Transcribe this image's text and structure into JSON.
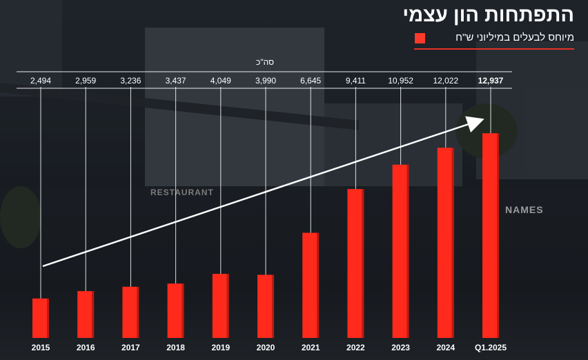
{
  "header": {
    "title": "התפתחות הון עצמי",
    "subtitle": "מיוחס לבעלים במיליוני ש\"ח",
    "legend_color": "#ff3a2a"
  },
  "background": {
    "sign_restaurant": "RESTAURANT",
    "sign_names": "NAMES"
  },
  "chart_data": {
    "type": "bar",
    "title": "התפתחות הון עצמי",
    "subtitle": "מיוחס לבעלים במיליוני ש\"ח",
    "total_row_label": "סה\"כ",
    "categories": [
      "2015",
      "2016",
      "2017",
      "2018",
      "2019",
      "2020",
      "2021",
      "2022",
      "2023",
      "2024",
      "Q1.2025"
    ],
    "values": [
      2494,
      2959,
      3236,
      3437,
      4049,
      3990,
      6645,
      9411,
      10952,
      12022,
      12937
    ],
    "value_labels": [
      "2,494",
      "2,959",
      "3,236",
      "3,437",
      "4,049",
      "3,990",
      "6,645",
      "9,411",
      "10,952",
      "12,022",
      "12,937"
    ],
    "ylim": [
      0,
      13600
    ],
    "grid": false,
    "trend_arrow": true,
    "bar_color": "#ff2a1c",
    "axis_line_color": "#ffffff"
  }
}
